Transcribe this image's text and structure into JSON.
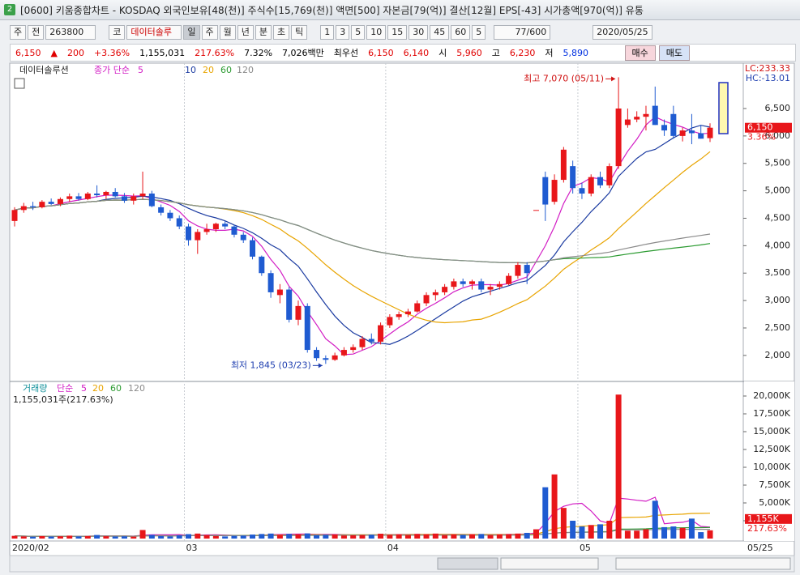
{
  "window": {
    "badge": "2",
    "title": "[0600] 키움종합차트 - KOSDAQ 외국인보유[48(천)] 주식수[15,769(천)] 액면[500] 자본금[79(억)] 결산[12월] EPS[-43] 시가총액[970(억)] 유통",
    "toolbar": [
      "주",
      "전",
      "263800",
      "코",
      "데이터솔루",
      "일",
      "주",
      "월",
      "년",
      "분",
      "초",
      "틱",
      "1",
      "3",
      "5",
      "10",
      "15",
      "30",
      "45",
      "60",
      "5",
      "77/600",
      "2020/05/25"
    ],
    "quote": [
      {
        "text": "6,150",
        "color": "#e00000"
      },
      {
        "text": "▲",
        "color": "#e00000"
      },
      {
        "text": "200",
        "color": "#e00000"
      },
      {
        "text": "+3.36%",
        "color": "#e00000"
      },
      {
        "text": "1,155,031",
        "color": "#000000"
      },
      {
        "text": "217.63%",
        "color": "#e00000"
      },
      {
        "text": "7.32%",
        "color": "#000000"
      },
      {
        "text": "7,026백만",
        "color": "#000000"
      },
      {
        "text": "최우선",
        "color": "#000000"
      },
      {
        "text": "6,150",
        "color": "#e00000"
      },
      {
        "text": "6,140",
        "color": "#e00000"
      },
      {
        "text": "시",
        "color": "#000000"
      },
      {
        "text": "5,960",
        "color": "#e00000"
      },
      {
        "text": "고",
        "color": "#000000"
      },
      {
        "text": "6,230",
        "color": "#e00000"
      },
      {
        "text": "저",
        "color": "#000000"
      },
      {
        "text": "5,890",
        "color": "#0030e0"
      }
    ],
    "buttons": [
      "매수",
      "매도"
    ]
  },
  "chart_data": [
    {
      "type": "candlestick",
      "legend_source": "데이터솔루션",
      "legend_label": "종가 단순",
      "ma_periods": [
        5,
        10,
        20,
        60,
        120
      ],
      "ma_colors": [
        "#d21cc4",
        "#1a3aa0",
        "#e8a400",
        "#2a9a30",
        "#8a8a8a"
      ],
      "up_color": "#e8161a",
      "down_color": "#1f5bd1",
      "ohlc": [
        [
          4450,
          4700,
          4350,
          4650
        ],
        [
          4650,
          4780,
          4600,
          4720
        ],
        [
          4720,
          4800,
          4650,
          4700
        ],
        [
          4700,
          4830,
          4680,
          4800
        ],
        [
          4800,
          4860,
          4740,
          4760
        ],
        [
          4760,
          4880,
          4720,
          4850
        ],
        [
          4850,
          4950,
          4800,
          4900
        ],
        [
          4900,
          4960,
          4820,
          4850
        ],
        [
          4850,
          4980,
          4830,
          4950
        ],
        [
          4950,
          5100,
          4880,
          4920
        ],
        [
          4920,
          5000,
          4850,
          4980
        ],
        [
          4980,
          5050,
          4880,
          4900
        ],
        [
          4900,
          4960,
          4780,
          4820
        ],
        [
          4820,
          4950,
          4750,
          4900
        ],
        [
          4900,
          5350,
          4850,
          4950
        ],
        [
          4950,
          5000,
          4700,
          4720
        ],
        [
          4700,
          4750,
          4550,
          4600
        ],
        [
          4600,
          4650,
          4450,
          4500
        ],
        [
          4500,
          4550,
          4300,
          4350
        ],
        [
          4350,
          4400,
          4000,
          4100
        ],
        [
          4100,
          4300,
          3850,
          4250
        ],
        [
          4250,
          4400,
          4200,
          4300
        ],
        [
          4300,
          4420,
          4250,
          4400
        ],
        [
          4400,
          4450,
          4300,
          4350
        ],
        [
          4350,
          4380,
          4150,
          4200
        ],
        [
          4200,
          4250,
          4050,
          4100
        ],
        [
          4100,
          4150,
          3750,
          3800
        ],
        [
          3800,
          3820,
          3450,
          3500
        ],
        [
          3500,
          3550,
          3050,
          3150
        ],
        [
          3100,
          3300,
          2950,
          3200
        ],
        [
          3200,
          3250,
          2600,
          2650
        ],
        [
          2650,
          3000,
          2550,
          2900
        ],
        [
          2900,
          2950,
          2050,
          2100
        ],
        [
          2100,
          2150,
          1900,
          1950
        ],
        [
          1950,
          2000,
          1845,
          1920
        ],
        [
          1920,
          2050,
          1900,
          2000
        ],
        [
          2000,
          2150,
          1980,
          2100
        ],
        [
          2100,
          2200,
          2050,
          2150
        ],
        [
          2150,
          2350,
          2100,
          2300
        ],
        [
          2300,
          2400,
          2200,
          2250
        ],
        [
          2250,
          2600,
          2200,
          2550
        ],
        [
          2550,
          2750,
          2500,
          2700
        ],
        [
          2700,
          2800,
          2650,
          2750
        ],
        [
          2750,
          2850,
          2700,
          2800
        ],
        [
          2800,
          3000,
          2780,
          2950
        ],
        [
          2950,
          3150,
          2900,
          3100
        ],
        [
          3100,
          3200,
          3000,
          3150
        ],
        [
          3150,
          3300,
          3100,
          3250
        ],
        [
          3250,
          3400,
          3200,
          3350
        ],
        [
          3350,
          3400,
          3250,
          3300
        ],
        [
          3300,
          3380,
          3200,
          3350
        ],
        [
          3350,
          3400,
          3150,
          3200
        ],
        [
          3200,
          3300,
          3100,
          3250
        ],
        [
          3250,
          3350,
          3200,
          3300
        ],
        [
          3300,
          3500,
          3280,
          3450
        ],
        [
          3450,
          3700,
          3400,
          3650
        ],
        [
          3650,
          3700,
          3300,
          3500
        ],
        [
          4650,
          4650,
          4650,
          4650
        ],
        [
          5250,
          5350,
          4450,
          4750
        ],
        [
          4800,
          5300,
          4750,
          5200
        ],
        [
          5200,
          5800,
          5150,
          5750
        ],
        [
          5450,
          5550,
          4950,
          5050
        ],
        [
          5050,
          5150,
          4850,
          4950
        ],
        [
          4950,
          5300,
          4900,
          5250
        ],
        [
          5250,
          5350,
          5050,
          5100
        ],
        [
          5100,
          5500,
          5050,
          5450
        ],
        [
          5450,
          7070,
          5400,
          6500
        ],
        [
          6200,
          6500,
          6150,
          6300
        ],
        [
          6300,
          6450,
          6250,
          6350
        ],
        [
          6350,
          6550,
          6100,
          6400
        ],
        [
          6550,
          6900,
          6200,
          6200
        ],
        [
          6200,
          6300,
          6000,
          6100
        ],
        [
          6400,
          6550,
          5950,
          6000
        ],
        [
          6000,
          6150,
          5900,
          6100
        ],
        [
          6100,
          6400,
          5850,
          6050
        ],
        [
          6050,
          6200,
          5950,
          5950
        ],
        [
          5960,
          6230,
          5890,
          6150
        ]
      ],
      "ylim": [
        1540,
        7120
      ],
      "yticks": [
        {
          "value": 2000,
          "label": "2,000"
        },
        {
          "value": 2500,
          "label": "2,500"
        },
        {
          "value": 3000,
          "label": "3,000"
        },
        {
          "value": 3500,
          "label": "3,500"
        },
        {
          "value": 4000,
          "label": "4,000"
        },
        {
          "value": 4500,
          "label": "4,500"
        },
        {
          "value": 5000,
          "label": "5,000"
        },
        {
          "value": 5500,
          "label": "5,500"
        },
        {
          "value": 6000,
          "label": "6,000"
        },
        {
          "value": 6500,
          "label": "6,500"
        }
      ],
      "last_label": {
        "value": 6150,
        "label": "6,150"
      },
      "change_label": "3.36%",
      "lc_label": "LC:233.33",
      "hc_label": "HC:-13.01",
      "annotations": [
        {
          "text": "최고 7,070 (05/11)",
          "index": 66,
          "value": 7070,
          "color": "#d01010"
        },
        {
          "text": "최저 1,845 (03/23)",
          "index": 34,
          "value": 1845,
          "color": "#1f3fb0"
        }
      ]
    },
    {
      "type": "bar",
      "legend_label": "거래량",
      "legend_method": "단순",
      "ma_periods": [
        5,
        20,
        60,
        120
      ],
      "ma_colors": [
        "#d21cc4",
        "#e8a400",
        "#2a9a30",
        "#8a8a8a"
      ],
      "summary": "1,155,031주(217.63%)",
      "categories": [
        "2020/02",
        null,
        null,
        null,
        null,
        null,
        null,
        null,
        null,
        null,
        null,
        null,
        null,
        null,
        null,
        null,
        null,
        null,
        null,
        "03",
        null,
        null,
        null,
        null,
        null,
        null,
        null,
        null,
        null,
        null,
        null,
        null,
        null,
        null,
        null,
        null,
        null,
        null,
        null,
        null,
        null,
        "04",
        null,
        null,
        null,
        null,
        null,
        null,
        null,
        null,
        null,
        null,
        null,
        null,
        null,
        null,
        null,
        null,
        null,
        null,
        null,
        null,
        "05",
        null,
        null,
        null,
        null,
        null,
        null,
        null,
        null,
        null,
        null,
        null,
        null,
        null,
        null
      ],
      "end_label": "05/25",
      "values": [
        380,
        300,
        260,
        350,
        280,
        320,
        410,
        300,
        360,
        500,
        330,
        290,
        310,
        270,
        1200,
        520,
        340,
        300,
        450,
        620,
        700,
        480,
        350,
        300,
        380,
        420,
        560,
        640,
        700,
        520,
        650,
        600,
        720,
        480,
        520,
        560,
        430,
        460,
        500,
        550,
        680,
        520,
        580,
        500,
        650,
        600,
        700,
        480,
        560,
        520,
        600,
        640,
        500,
        580,
        620,
        700,
        800,
        1300,
        7200,
        9000,
        4300,
        2500,
        1700,
        1900,
        2000,
        2500,
        20200,
        1100,
        1100,
        1300,
        5300,
        1600,
        1700,
        1500,
        2800,
        900,
        1155
      ],
      "ylim": [
        0,
        21250
      ],
      "yticks": [
        {
          "value": 2500,
          "label": "2,500K"
        },
        {
          "value": 5000,
          "label": "5,000K"
        },
        {
          "value": 7500,
          "label": "7,500K"
        },
        {
          "value": 10000,
          "label": "10,000K"
        },
        {
          "value": 12500,
          "label": "12,500K"
        },
        {
          "value": 15000,
          "label": "15,000K"
        },
        {
          "value": 17500,
          "label": "17,500K"
        },
        {
          "value": 20000,
          "label": "20,000K"
        }
      ],
      "last_label": {
        "value": 1155,
        "label": "1,155K"
      },
      "pct_label": "217.63%",
      "grid": true
    }
  ]
}
